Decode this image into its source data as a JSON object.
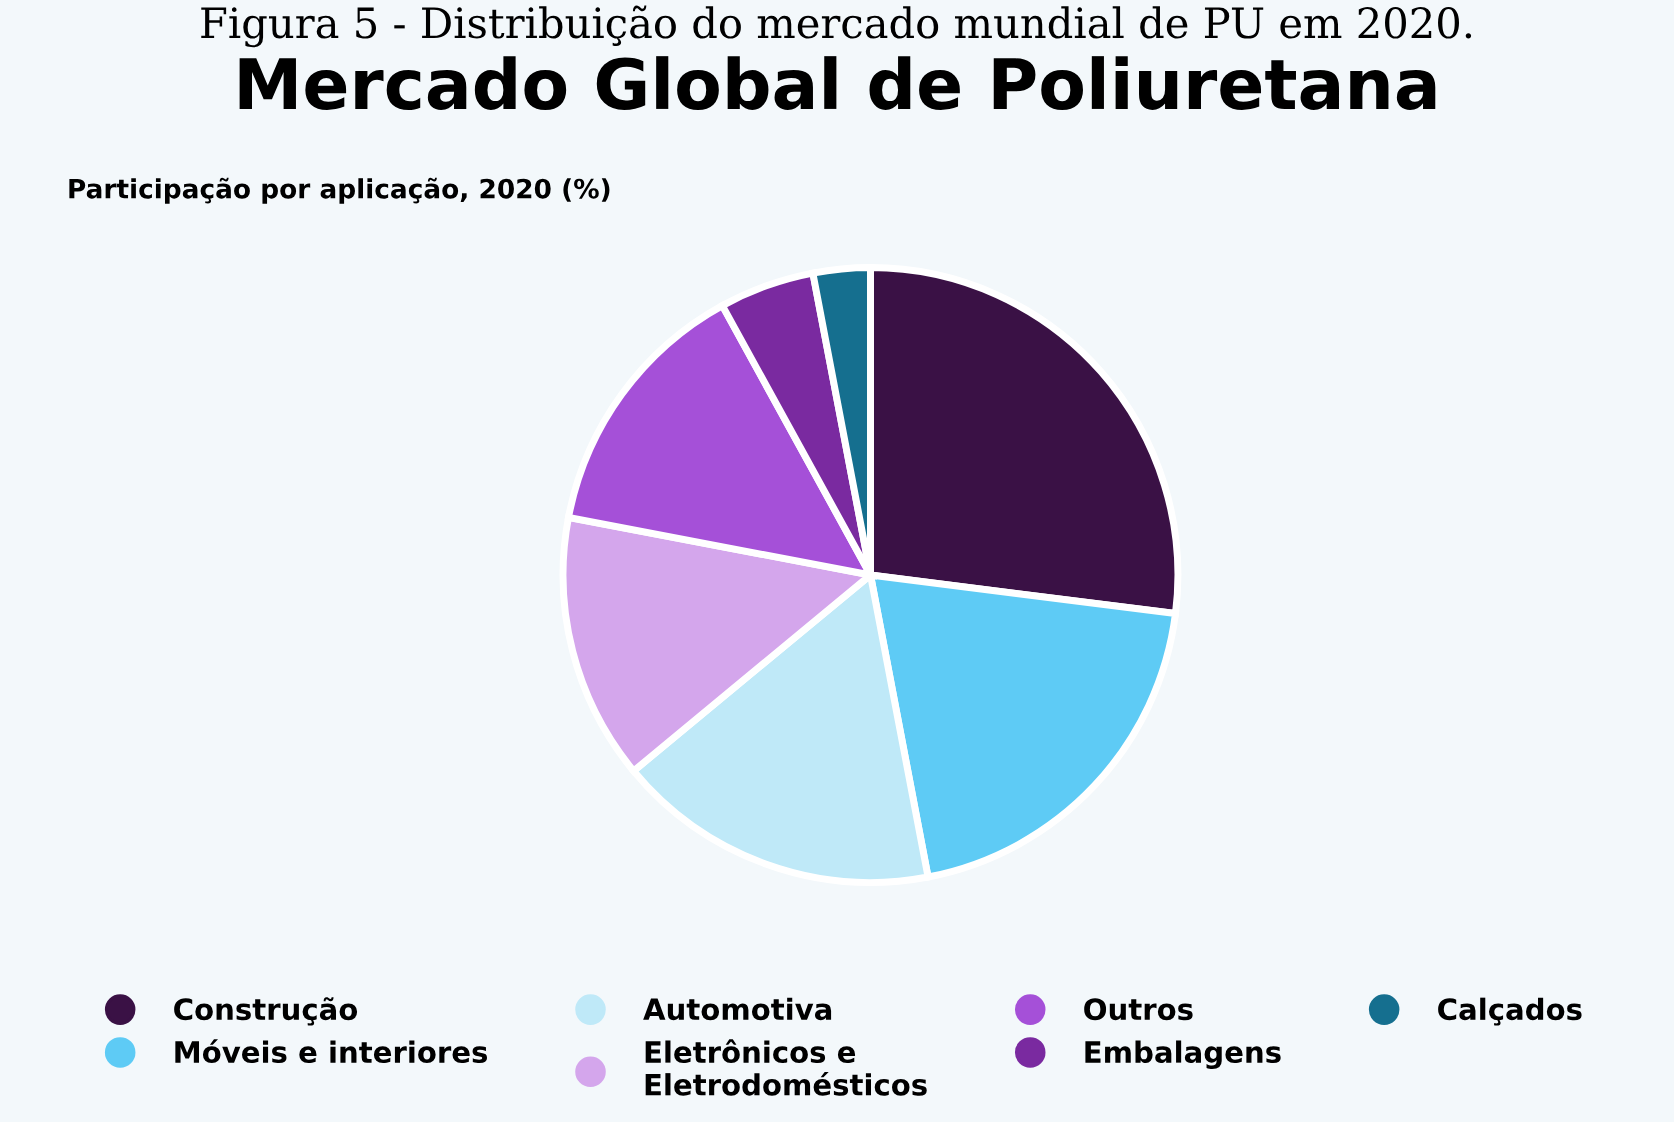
{
  "chart_data": {
    "type": "pie",
    "title": "Mercado Global de Poliuretana",
    "subtitle": "Participação por aplicação, 2020 (%)",
    "annotations": [
      "Figura 5 - Distribuição do mercado mundial de PU em 2020."
    ],
    "categories": [
      "Construção",
      "Móveis e interiores",
      "Automotiva",
      "Eletrônicos e\nEletrodomésticos",
      "Outros",
      "Embalagens",
      "Calçados"
    ],
    "values": [
      27,
      20,
      17,
      14,
      14,
      5,
      3
    ],
    "colors": [
      "#3a1145",
      "#5ecbf5",
      "#bfe9f8",
      "#d4a6ec",
      "#a550d8",
      "#7a2aa0",
      "#156f8f"
    ],
    "legend": "bottom"
  }
}
